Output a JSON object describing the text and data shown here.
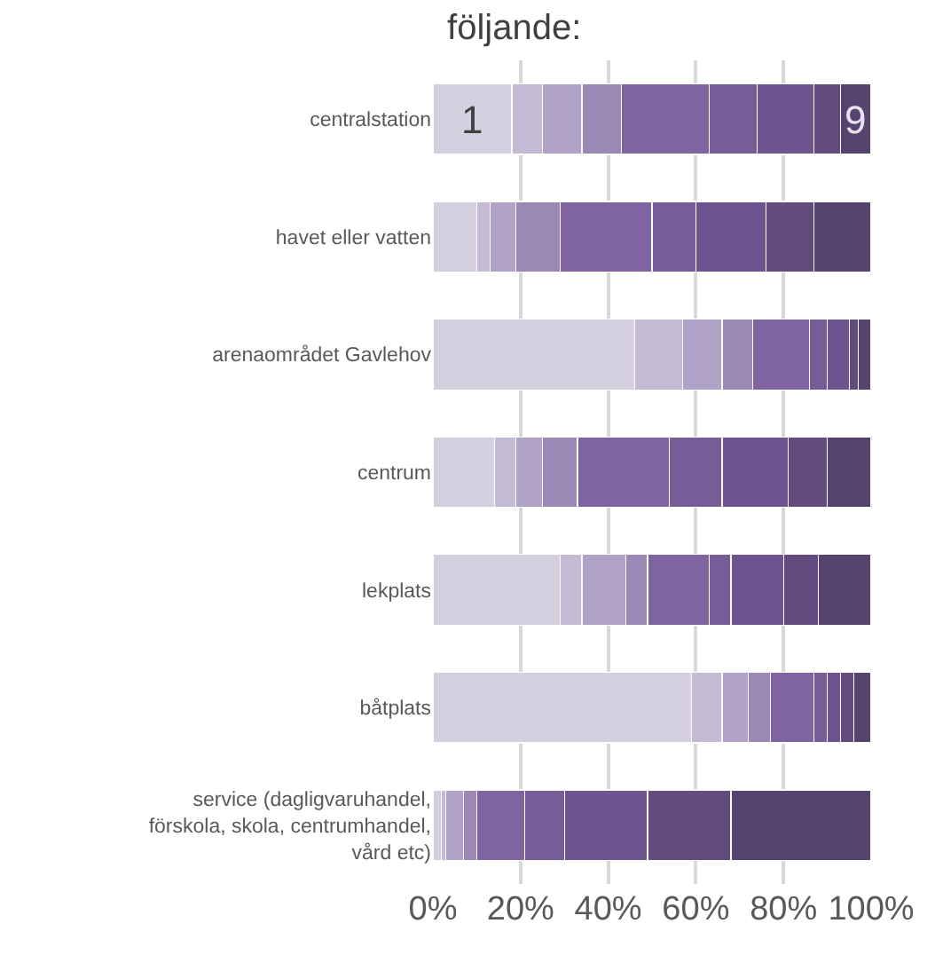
{
  "chart_data": {
    "type": "bar",
    "orientation": "horizontal",
    "stacked": true,
    "title": "följande:",
    "categories": [
      "centralstation",
      "havet eller vatten",
      "arenaområdet Gavlehov",
      "centrum",
      "lekplats",
      "båtplats",
      "service (dagligvaruhandel,\nförskola, skola, centrumhandel,\nvård etc)"
    ],
    "series": [
      {
        "name": "1",
        "color": "#d5d0e0",
        "values": [
          18,
          10,
          46,
          14,
          29,
          59,
          2
        ]
      },
      {
        "color": "#c4bad3",
        "values": [
          7,
          3,
          11,
          5,
          5,
          7,
          1
        ]
      },
      {
        "color": "#b1a3c7",
        "values": [
          9,
          6,
          9,
          6,
          10,
          6,
          4
        ]
      },
      {
        "color": "#9c88b4",
        "values": [
          9,
          10,
          7,
          8,
          5,
          5,
          3
        ]
      },
      {
        "color": "#8064a2",
        "values": [
          20,
          21,
          13,
          21,
          14,
          10,
          11
        ]
      },
      {
        "color": "#765d98",
        "values": [
          11,
          10,
          4,
          12,
          5,
          3,
          9
        ]
      },
      {
        "color": "#6d5490",
        "values": [
          13,
          16,
          5,
          15,
          12,
          3,
          19
        ]
      },
      {
        "color": "#634b7f",
        "values": [
          6,
          11,
          2,
          9,
          8,
          3,
          19
        ]
      },
      {
        "name": "9",
        "color": "#56436f",
        "values": [
          7,
          13,
          3,
          10,
          12,
          4,
          32
        ]
      }
    ],
    "xlim": [
      0,
      100
    ],
    "xticks": [
      {
        "value": 0,
        "label": "0%"
      },
      {
        "value": 20,
        "label": "20%"
      },
      {
        "value": 40,
        "label": "40%"
      },
      {
        "value": 60,
        "label": "60%"
      },
      {
        "value": 80,
        "label": "80%"
      },
      {
        "value": 100,
        "label": "100%"
      }
    ],
    "grid": "x",
    "legend": false
  }
}
